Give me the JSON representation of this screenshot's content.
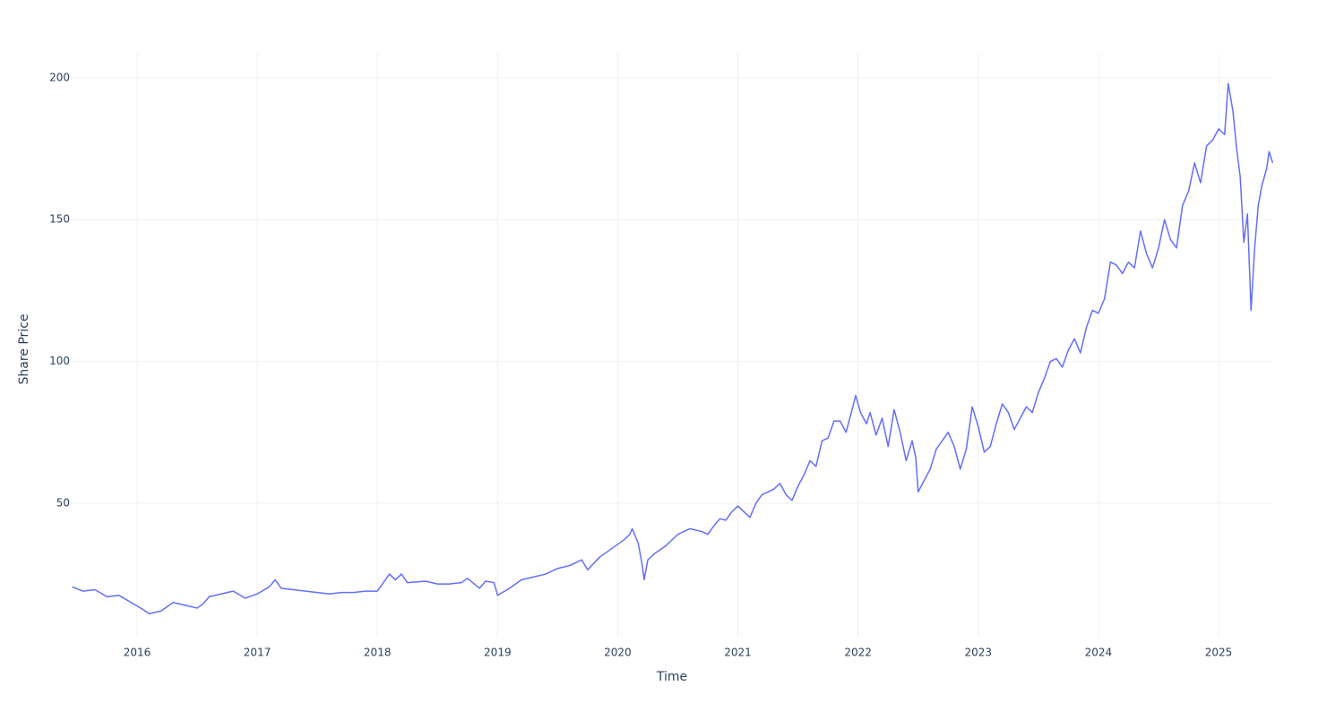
{
  "chart_data": {
    "type": "line",
    "xlabel": "Time",
    "ylabel": "Share Price",
    "x": [
      2015.46,
      2015.55,
      2015.65,
      2015.75,
      2015.85,
      2015.95,
      2016.05,
      2016.1,
      2016.2,
      2016.3,
      2016.4,
      2016.5,
      2016.55,
      2016.6,
      2016.7,
      2016.8,
      2016.9,
      2017.0,
      2017.1,
      2017.15,
      2017.2,
      2017.3,
      2017.4,
      2017.5,
      2017.6,
      2017.7,
      2017.8,
      2017.9,
      2018.0,
      2018.05,
      2018.1,
      2018.15,
      2018.2,
      2018.25,
      2018.4,
      2018.5,
      2018.6,
      2018.7,
      2018.75,
      2018.85,
      2018.9,
      2018.97,
      2019.0,
      2019.1,
      2019.2,
      2019.3,
      2019.4,
      2019.5,
      2019.6,
      2019.7,
      2019.75,
      2019.85,
      2019.95,
      2020.05,
      2020.1,
      2020.12,
      2020.17,
      2020.2,
      2020.22,
      2020.25,
      2020.3,
      2020.4,
      2020.5,
      2020.6,
      2020.7,
      2020.75,
      2020.8,
      2020.85,
      2020.9,
      2020.95,
      2021.0,
      2021.05,
      2021.1,
      2021.15,
      2021.2,
      2021.3,
      2021.35,
      2021.4,
      2021.45,
      2021.5,
      2021.55,
      2021.6,
      2021.65,
      2021.7,
      2021.75,
      2021.8,
      2021.85,
      2021.9,
      2021.95,
      2021.98,
      2022.02,
      2022.07,
      2022.1,
      2022.15,
      2022.2,
      2022.25,
      2022.3,
      2022.35,
      2022.4,
      2022.45,
      2022.48,
      2022.5,
      2022.55,
      2022.6,
      2022.65,
      2022.7,
      2022.75,
      2022.8,
      2022.85,
      2022.9,
      2022.95,
      2023.0,
      2023.05,
      2023.1,
      2023.15,
      2023.2,
      2023.25,
      2023.3,
      2023.35,
      2023.4,
      2023.45,
      2023.5,
      2023.55,
      2023.6,
      2023.65,
      2023.7,
      2023.75,
      2023.8,
      2023.85,
      2023.9,
      2023.95,
      2024.0,
      2024.05,
      2024.1,
      2024.15,
      2024.2,
      2024.25,
      2024.3,
      2024.35,
      2024.4,
      2024.45,
      2024.5,
      2024.55,
      2024.6,
      2024.65,
      2024.7,
      2024.75,
      2024.8,
      2024.85,
      2024.9,
      2024.95,
      2025.0,
      2025.05,
      2025.08,
      2025.12,
      2025.15,
      2025.18,
      2025.21,
      2025.24,
      2025.27,
      2025.3,
      2025.33,
      2025.36,
      2025.4,
      2025.42,
      2025.45
    ],
    "series": [
      {
        "name": "Share Price",
        "color": "#636efa",
        "values": [
          20.5,
          19,
          19.5,
          17,
          17.5,
          15,
          12.5,
          11,
          12,
          15,
          14,
          13,
          14.5,
          17,
          18,
          19,
          16.5,
          18,
          20.5,
          23,
          20,
          19.5,
          19,
          18.5,
          18,
          18.5,
          18.5,
          19,
          19,
          22,
          25,
          23,
          25,
          22,
          22.5,
          21.5,
          21.5,
          22,
          23.5,
          20,
          22.5,
          22,
          17.5,
          20,
          23,
          24,
          25,
          27,
          28,
          30,
          26.5,
          31,
          34,
          37,
          39,
          41,
          36,
          29,
          23,
          30,
          32,
          35,
          39,
          41,
          40,
          39,
          42,
          44.5,
          44,
          47,
          49,
          47,
          45,
          50,
          53,
          55,
          57,
          53,
          51,
          56,
          60,
          65,
          63,
          72,
          73,
          79,
          79,
          75,
          83,
          88,
          82,
          78,
          82,
          74,
          80,
          70,
          83,
          75,
          65,
          72,
          66,
          54,
          58,
          62,
          69,
          72,
          75,
          70,
          62,
          69,
          84,
          77,
          68,
          70,
          78,
          85,
          82,
          76,
          80,
          84,
          82,
          89,
          94,
          100,
          101,
          98,
          104,
          108,
          103,
          112,
          118,
          117,
          122,
          135,
          134,
          131,
          135,
          133,
          146,
          138,
          133,
          140,
          150,
          143,
          140,
          155,
          160,
          170,
          163,
          176,
          178,
          182,
          180,
          198,
          188,
          175,
          165,
          142,
          152,
          118,
          140,
          155,
          162,
          168,
          174,
          170
        ]
      }
    ],
    "xlim": [
      2015.456,
      2025.447
    ],
    "xticks": [
      2016,
      2017,
      2018,
      2019,
      2020,
      2021,
      2022,
      2023,
      2024,
      2025
    ],
    "ylim": [
      2.6,
      208.5
    ],
    "yticks": [
      50,
      100,
      150,
      200
    ],
    "grid": true
  }
}
